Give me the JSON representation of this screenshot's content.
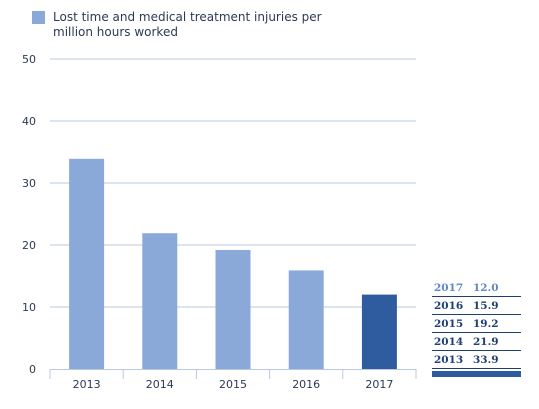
{
  "chart_data": {
    "type": "bar",
    "categories": [
      "2013",
      "2014",
      "2015",
      "2016",
      "2017"
    ],
    "values": [
      33.9,
      21.9,
      19.2,
      15.9,
      12.0
    ],
    "legend": "Lost time and medical treatment injuries per million hours worked",
    "ylim": [
      0,
      50
    ],
    "yticks": [
      0,
      10,
      20,
      30,
      40,
      50
    ],
    "grid": true,
    "legend_position": "top-left",
    "colors": {
      "bar": "#8ba9d8",
      "highlight": "#2f5c9e",
      "grid": "#b9c9e2",
      "text": "#2b3a55"
    },
    "highlight_category": "2017"
  },
  "table": [
    {
      "year": "2017",
      "value": "12.0"
    },
    {
      "year": "2016",
      "value": "15.9"
    },
    {
      "year": "2015",
      "value": "19.2"
    },
    {
      "year": "2014",
      "value": "21.9"
    },
    {
      "year": "2013",
      "value": "33.9"
    }
  ]
}
